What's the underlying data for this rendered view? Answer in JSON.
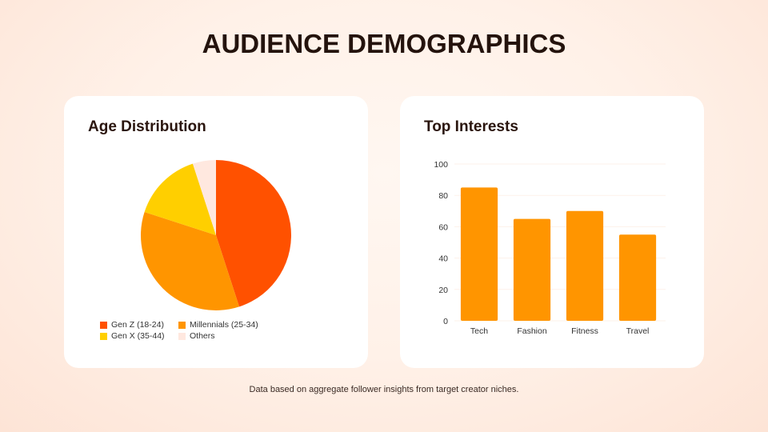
{
  "title": "AUDIENCE DEMOGRAPHICS",
  "footer": "Data based on aggregate follower insights from target creator niches.",
  "chart_data": [
    {
      "type": "pie",
      "title": "Age Distribution",
      "labels": [
        "Gen Z (18-24)",
        "Millennials (25-34)",
        "Gen X (35-44)",
        "Others"
      ],
      "values": [
        45,
        35,
        15,
        5
      ],
      "colors": [
        "#ff5100",
        "#ff9500",
        "#ffcf00",
        "#ffe8df"
      ],
      "legend": "bottom"
    },
    {
      "type": "bar",
      "title": "Top Interests",
      "categories": [
        "Tech",
        "Fashion",
        "Fitness",
        "Travel"
      ],
      "values": [
        85,
        65,
        70,
        55
      ],
      "color": "#ff9500",
      "ylim": [
        0,
        100
      ],
      "yticks": [
        0,
        20,
        40,
        60,
        80,
        100
      ],
      "grid": true
    }
  ]
}
